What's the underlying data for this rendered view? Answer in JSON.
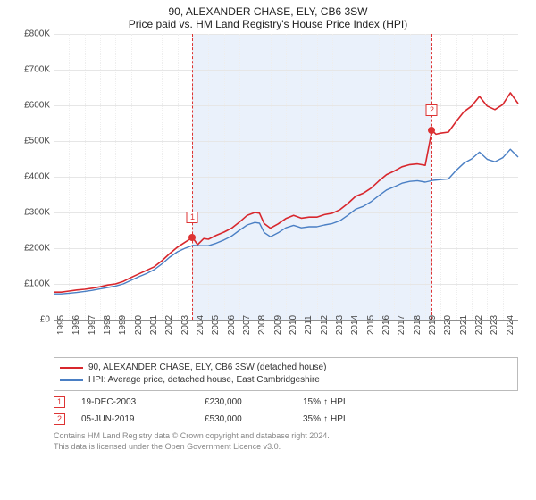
{
  "title": {
    "line1": "90, ALEXANDER CHASE, ELY, CB6 3SW",
    "line2": "Price paid vs. HM Land Registry's House Price Index (HPI)"
  },
  "chart": {
    "type": "line",
    "background_color": "#ffffff",
    "shade_color": "#eaf1fb",
    "grid_color": "#e6e6e6",
    "axis_color": "#909090",
    "x": {
      "min": 1995,
      "max": 2025,
      "ticks": [
        1995,
        1996,
        1997,
        1998,
        1999,
        2000,
        2001,
        2002,
        2003,
        2004,
        2005,
        2006,
        2007,
        2008,
        2009,
        2010,
        2011,
        2012,
        2013,
        2014,
        2015,
        2016,
        2017,
        2018,
        2019,
        2020,
        2021,
        2022,
        2023,
        2024
      ]
    },
    "y": {
      "min": 0,
      "max": 800000,
      "ticks": [
        0,
        100000,
        200000,
        300000,
        400000,
        500000,
        600000,
        700000,
        800000
      ],
      "tick_labels": [
        "£0",
        "£100K",
        "£200K",
        "£300K",
        "£400K",
        "£500K",
        "£600K",
        "£700K",
        "£800K"
      ]
    },
    "shade_range": [
      2003.97,
      2019.43
    ],
    "series": [
      {
        "name": "property",
        "color": "#d8272d",
        "width": 1.6,
        "points": [
          [
            1995.0,
            77000
          ],
          [
            1995.5,
            77000
          ],
          [
            1996.0,
            80000
          ],
          [
            1996.5,
            83000
          ],
          [
            1997.0,
            85000
          ],
          [
            1997.5,
            88000
          ],
          [
            1998.0,
            92000
          ],
          [
            1998.5,
            97000
          ],
          [
            1999.0,
            100000
          ],
          [
            1999.5,
            107000
          ],
          [
            2000.0,
            118000
          ],
          [
            2000.5,
            128000
          ],
          [
            2001.0,
            138000
          ],
          [
            2001.5,
            148000
          ],
          [
            2002.0,
            165000
          ],
          [
            2002.5,
            185000
          ],
          [
            2003.0,
            203000
          ],
          [
            2003.5,
            217000
          ],
          [
            2003.97,
            230000
          ],
          [
            2004.3,
            210000
          ],
          [
            2004.7,
            227000
          ],
          [
            2005.0,
            225000
          ],
          [
            2005.5,
            236000
          ],
          [
            2006.0,
            245000
          ],
          [
            2006.5,
            256000
          ],
          [
            2007.0,
            273000
          ],
          [
            2007.5,
            292000
          ],
          [
            2008.0,
            300000
          ],
          [
            2008.3,
            298000
          ],
          [
            2008.6,
            269000
          ],
          [
            2009.0,
            256000
          ],
          [
            2009.5,
            268000
          ],
          [
            2010.0,
            283000
          ],
          [
            2010.5,
            292000
          ],
          [
            2011.0,
            284000
          ],
          [
            2011.5,
            287000
          ],
          [
            2012.0,
            287000
          ],
          [
            2012.5,
            294000
          ],
          [
            2013.0,
            298000
          ],
          [
            2013.5,
            308000
          ],
          [
            2014.0,
            325000
          ],
          [
            2014.5,
            345000
          ],
          [
            2015.0,
            354000
          ],
          [
            2015.5,
            368000
          ],
          [
            2016.0,
            388000
          ],
          [
            2016.5,
            406000
          ],
          [
            2017.0,
            416000
          ],
          [
            2017.5,
            428000
          ],
          [
            2018.0,
            434000
          ],
          [
            2018.5,
            436000
          ],
          [
            2019.0,
            432000
          ],
          [
            2019.43,
            530000
          ],
          [
            2019.7,
            519000
          ],
          [
            2020.0,
            522000
          ],
          [
            2020.5,
            525000
          ],
          [
            2021.0,
            555000
          ],
          [
            2021.5,
            582000
          ],
          [
            2022.0,
            598000
          ],
          [
            2022.5,
            625000
          ],
          [
            2023.0,
            598000
          ],
          [
            2023.5,
            588000
          ],
          [
            2024.0,
            602000
          ],
          [
            2024.5,
            635000
          ],
          [
            2025.0,
            605000
          ]
        ]
      },
      {
        "name": "hpi",
        "color": "#4a7fc4",
        "width": 1.4,
        "points": [
          [
            1995.0,
            72000
          ],
          [
            1995.5,
            72000
          ],
          [
            1996.0,
            74000
          ],
          [
            1996.5,
            76000
          ],
          [
            1997.0,
            79000
          ],
          [
            1997.5,
            82000
          ],
          [
            1998.0,
            86000
          ],
          [
            1998.5,
            90000
          ],
          [
            1999.0,
            94000
          ],
          [
            1999.5,
            100000
          ],
          [
            2000.0,
            110000
          ],
          [
            2000.5,
            120000
          ],
          [
            2001.0,
            129000
          ],
          [
            2001.5,
            140000
          ],
          [
            2002.0,
            156000
          ],
          [
            2002.5,
            175000
          ],
          [
            2003.0,
            190000
          ],
          [
            2003.5,
            200000
          ],
          [
            2004.0,
            208000
          ],
          [
            2004.5,
            207000
          ],
          [
            2005.0,
            207000
          ],
          [
            2005.5,
            214000
          ],
          [
            2006.0,
            223000
          ],
          [
            2006.5,
            234000
          ],
          [
            2007.0,
            250000
          ],
          [
            2007.5,
            265000
          ],
          [
            2008.0,
            272000
          ],
          [
            2008.3,
            270000
          ],
          [
            2008.6,
            244000
          ],
          [
            2009.0,
            232000
          ],
          [
            2009.5,
            243000
          ],
          [
            2010.0,
            257000
          ],
          [
            2010.5,
            264000
          ],
          [
            2011.0,
            257000
          ],
          [
            2011.5,
            260000
          ],
          [
            2012.0,
            260000
          ],
          [
            2012.5,
            265000
          ],
          [
            2013.0,
            269000
          ],
          [
            2013.5,
            277000
          ],
          [
            2014.0,
            292000
          ],
          [
            2014.5,
            309000
          ],
          [
            2015.0,
            317000
          ],
          [
            2015.5,
            330000
          ],
          [
            2016.0,
            347000
          ],
          [
            2016.5,
            363000
          ],
          [
            2017.0,
            372000
          ],
          [
            2017.5,
            382000
          ],
          [
            2018.0,
            387000
          ],
          [
            2018.5,
            389000
          ],
          [
            2019.0,
            385000
          ],
          [
            2019.5,
            390000
          ],
          [
            2020.0,
            392000
          ],
          [
            2020.5,
            394000
          ],
          [
            2021.0,
            418000
          ],
          [
            2021.5,
            438000
          ],
          [
            2022.0,
            450000
          ],
          [
            2022.5,
            469000
          ],
          [
            2023.0,
            449000
          ],
          [
            2023.5,
            442000
          ],
          [
            2024.0,
            453000
          ],
          [
            2024.5,
            477000
          ],
          [
            2025.0,
            455000
          ]
        ]
      }
    ],
    "reference_lines": [
      {
        "id": "1",
        "x": 2003.97,
        "marker_y": 270000
      },
      {
        "id": "2",
        "x": 2019.43,
        "marker_y": 570000
      }
    ],
    "sale_markers": [
      {
        "x": 2003.97,
        "y": 230000
      },
      {
        "x": 2019.43,
        "y": 530000
      }
    ],
    "label_fontsize": 10
  },
  "legend": {
    "rows": [
      {
        "color": "#d8272d",
        "label": "90, ALEXANDER CHASE, ELY, CB6 3SW (detached house)"
      },
      {
        "color": "#4a7fc4",
        "label": "HPI: Average price, detached house, East Cambridgeshire"
      }
    ]
  },
  "sales": [
    {
      "id": "1",
      "date": "19-DEC-2003",
      "price": "£230,000",
      "diff_pct": "15%",
      "diff_dir": "↑",
      "diff_label": "HPI"
    },
    {
      "id": "2",
      "date": "05-JUN-2019",
      "price": "£530,000",
      "diff_pct": "35%",
      "diff_dir": "↑",
      "diff_label": "HPI"
    }
  ],
  "fineprint": {
    "line1": "Contains HM Land Registry data © Crown copyright and database right 2024.",
    "line2": "This data is licensed under the Open Government Licence v3.0."
  }
}
